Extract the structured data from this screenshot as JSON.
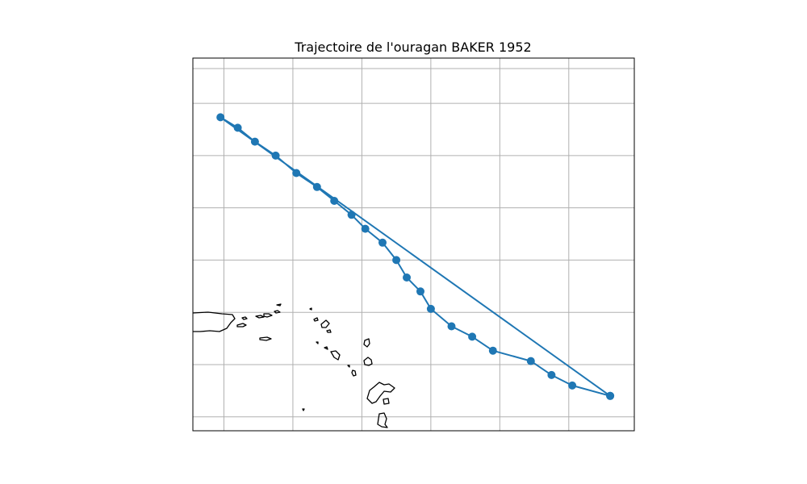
{
  "title": "Trajectoire de l'ouragan BAKER 1952",
  "colors": {
    "track": "#1f77b4",
    "grid": "#b0b0b0",
    "coast": "#000000"
  },
  "map": {
    "extent": {
      "lon": [
        -66.4,
        -53.6
      ],
      "lat": [
        14.6,
        25.3
      ]
    },
    "grid_lons": [
      -65.5,
      -63.5,
      -61.5,
      -59.5,
      -57.5,
      -55.5
    ],
    "grid_lats": [
      15.0,
      16.5,
      18.0,
      19.5,
      21.0,
      22.5,
      24.0,
      25.0
    ],
    "show_grid": true,
    "coastlines": true
  },
  "chart_data": {
    "type": "map-track",
    "series": [
      {
        "points": [
          {
            "lon": -54.3,
            "lat": 15.6
          },
          {
            "lon": -55.4,
            "lat": 15.9
          },
          {
            "lon": -56.0,
            "lat": 16.2
          },
          {
            "lon": -56.6,
            "lat": 16.6
          },
          {
            "lon": -57.7,
            "lat": 16.9
          },
          {
            "lon": -58.3,
            "lat": 17.3
          },
          {
            "lon": -58.9,
            "lat": 17.6
          },
          {
            "lon": -59.5,
            "lat": 18.1
          },
          {
            "lon": -59.8,
            "lat": 18.6
          },
          {
            "lon": -60.2,
            "lat": 19.0
          },
          {
            "lon": -60.5,
            "lat": 19.5
          },
          {
            "lon": -60.9,
            "lat": 20.0
          },
          {
            "lon": -61.4,
            "lat": 20.4
          },
          {
            "lon": -61.8,
            "lat": 20.8
          },
          {
            "lon": -62.3,
            "lat": 21.2
          },
          {
            "lon": -62.8,
            "lat": 21.6
          },
          {
            "lon": -63.4,
            "lat": 22.0
          },
          {
            "lon": -64.0,
            "lat": 22.5
          },
          {
            "lon": -64.6,
            "lat": 22.9
          },
          {
            "lon": -65.1,
            "lat": 23.3
          },
          {
            "lon": -65.6,
            "lat": 23.6
          },
          {
            "lon": -54.3,
            "lat": 15.6
          }
        ]
      }
    ]
  }
}
